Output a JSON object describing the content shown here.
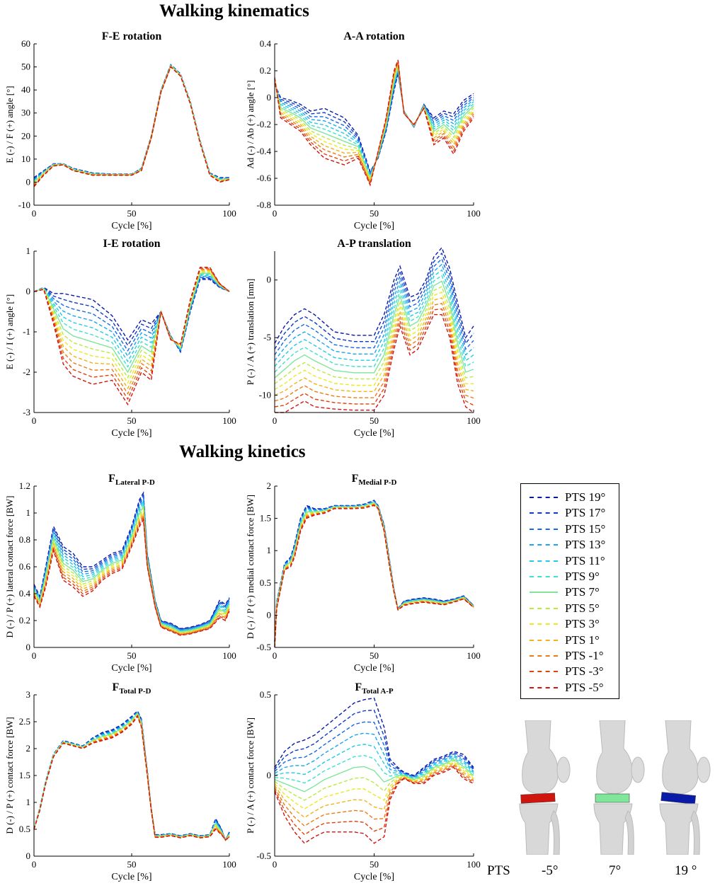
{
  "sections": {
    "kinematics_title": "Walking kinematics",
    "kinetics_title": "Walking kinetics"
  },
  "legend": {
    "entries": [
      {
        "label": "PTS 19°",
        "color": "#0a1aa8"
      },
      {
        "label": "PTS 17°",
        "color": "#0d39cc"
      },
      {
        "label": "PTS 15°",
        "color": "#1668e6"
      },
      {
        "label": "PTS 13°",
        "color": "#1aa6ee"
      },
      {
        "label": "PTS 11°",
        "color": "#22cbe6"
      },
      {
        "label": "PTS 9°",
        "color": "#3fe0cc"
      },
      {
        "label": "PTS 7°",
        "color": "#7fe69a"
      },
      {
        "label": "PTS 5°",
        "color": "#b8ea42"
      },
      {
        "label": "PTS 3°",
        "color": "#eaea22"
      },
      {
        "label": "PTS 1°",
        "color": "#f2b21a"
      },
      {
        "label": "PTS -1°",
        "color": "#ee7a14"
      },
      {
        "label": "PTS -3°",
        "color": "#e2420e"
      },
      {
        "label": "PTS -5°",
        "color": "#d0140e"
      }
    ]
  },
  "illustration": {
    "axis_label": "PTS",
    "models": [
      {
        "label": "-5°",
        "color": "#d0140e"
      },
      {
        "label": "7°",
        "color": "#7fe69a"
      },
      {
        "label": "19 °",
        "color": "#0a1aa8"
      }
    ]
  },
  "chart_data": [
    {
      "id": "fe",
      "type": "line",
      "title": "F-E rotation",
      "title_sub": "",
      "xlabel": "Cycle [%]",
      "ylabel": "E (-) / F (+) angle [°]",
      "xlim": [
        0,
        100
      ],
      "ylim": [
        -10,
        60
      ],
      "xticks": [
        0,
        50,
        100
      ],
      "yticks": [
        -10,
        0,
        10,
        20,
        30,
        40,
        50,
        60
      ],
      "x": [
        0,
        5,
        10,
        15,
        20,
        30,
        40,
        50,
        55,
        60,
        65,
        70,
        75,
        80,
        85,
        90,
        95,
        100
      ],
      "series_top": [
        2,
        5,
        8,
        8,
        6,
        4,
        3.5,
        3.5,
        6,
        20,
        40,
        51,
        47,
        35,
        18,
        4,
        2,
        2
      ],
      "series_bottom": [
        -2,
        3,
        7,
        7.5,
        5,
        3,
        3,
        3,
        5,
        19,
        39,
        50,
        46,
        34,
        17,
        3,
        0,
        1
      ]
    },
    {
      "id": "aa",
      "type": "line",
      "title": "A-A rotation",
      "title_sub": "",
      "xlabel": "Cycle [%]",
      "ylabel": "Ad (-) / Ab (+) angle [°]",
      "xlim": [
        0,
        100
      ],
      "ylim": [
        -0.8,
        0.4
      ],
      "xticks": [
        0,
        50,
        100
      ],
      "yticks": [
        -0.8,
        -0.6,
        -0.4,
        -0.2,
        0,
        0.2,
        0.4
      ],
      "x": [
        0,
        3,
        8,
        13,
        18,
        25,
        35,
        42,
        48,
        52,
        56,
        60,
        62,
        65,
        70,
        75,
        80,
        85,
        90,
        95,
        100
      ],
      "series_top": [
        0.1,
        0,
        -0.02,
        -0.05,
        -0.1,
        -0.08,
        -0.15,
        -0.28,
        -0.55,
        -0.45,
        -0.25,
        0.05,
        0.18,
        -0.1,
        -0.22,
        -0.05,
        -0.15,
        -0.1,
        -0.12,
        -0.02,
        0.03
      ],
      "series_bottom": [
        0.15,
        -0.15,
        -0.2,
        -0.25,
        -0.35,
        -0.45,
        -0.5,
        -0.45,
        -0.65,
        -0.4,
        -0.15,
        0.2,
        0.28,
        -0.12,
        -0.2,
        -0.08,
        -0.35,
        -0.3,
        -0.42,
        -0.25,
        -0.15
      ]
    },
    {
      "id": "ie",
      "type": "line",
      "title": "I-E rotation",
      "title_sub": "",
      "xlabel": "Cycle [%]",
      "ylabel": "E (-) / I (+) angle [°]",
      "xlim": [
        0,
        100
      ],
      "ylim": [
        -3,
        1
      ],
      "xticks": [
        0,
        50,
        100
      ],
      "yticks": [
        -3,
        -2,
        -1,
        0,
        1
      ],
      "x": [
        0,
        5,
        10,
        15,
        20,
        30,
        40,
        48,
        55,
        60,
        65,
        70,
        75,
        80,
        85,
        90,
        95,
        100
      ],
      "series_top": [
        0,
        0.1,
        -0.05,
        -0.05,
        -0.1,
        -0.2,
        -0.6,
        -1.2,
        -0.7,
        -0.8,
        -0.5,
        -1.1,
        -1.5,
        -0.5,
        0.3,
        0.3,
        0.1,
        0
      ],
      "series_bottom": [
        0,
        0.05,
        -0.8,
        -1.8,
        -2.1,
        -2.3,
        -2.2,
        -2.8,
        -2.0,
        -2.2,
        -0.5,
        -1.2,
        -1.3,
        -0.2,
        0.6,
        0.6,
        0.2,
        0
      ]
    },
    {
      "id": "ap",
      "type": "line",
      "title": "A-P translation",
      "title_sub": "",
      "xlabel": "Cycle [%]",
      "ylabel": "P (-) / A (+) translation [mm]",
      "xlim": [
        0,
        100
      ],
      "ylim": [
        -11.5,
        2.5
      ],
      "xticks": [
        0,
        50,
        100
      ],
      "yticks": [
        -10,
        -5,
        0
      ],
      "x": [
        0,
        5,
        10,
        15,
        20,
        30,
        40,
        50,
        55,
        60,
        63,
        68,
        72,
        76,
        80,
        84,
        88,
        92,
        96,
        100
      ],
      "series_top": [
        -5.5,
        -4,
        -3,
        -2.5,
        -3,
        -4.5,
        -4.8,
        -4.8,
        -3,
        0,
        1.2,
        -1.5,
        -1.2,
        0,
        2,
        2.8,
        1,
        -2,
        -5,
        -4
      ],
      "series_bottom": [
        -11.5,
        -11.5,
        -11,
        -10.5,
        -11,
        -11.2,
        -11.3,
        -11.3,
        -10,
        -6,
        -4,
        -6.5,
        -6,
        -4.5,
        -3,
        -3,
        -5,
        -9,
        -11,
        -11.5
      ]
    },
    {
      "id": "flat",
      "type": "line",
      "title": "F",
      "title_sub": "Lateral P-D",
      "xlabel": "Cycle [%]",
      "ylabel": "D (-) / P (+) lateral contact force [BW]",
      "xlim": [
        0,
        100
      ],
      "ylim": [
        0,
        1.2
      ],
      "xticks": [
        0,
        50,
        100
      ],
      "yticks": [
        0,
        0.2,
        0.4,
        0.6,
        0.8,
        1,
        1.2
      ],
      "x": [
        0,
        3,
        6,
        10,
        15,
        20,
        25,
        30,
        35,
        40,
        45,
        50,
        54,
        56,
        58,
        62,
        65,
        70,
        75,
        80,
        85,
        90,
        95,
        98,
        100
      ],
      "series_top": [
        0.47,
        0.38,
        0.6,
        0.9,
        0.75,
        0.7,
        0.6,
        0.6,
        0.65,
        0.7,
        0.72,
        0.9,
        1.1,
        1.15,
        0.7,
        0.35,
        0.2,
        0.18,
        0.14,
        0.15,
        0.17,
        0.2,
        0.35,
        0.32,
        0.37
      ],
      "series_bottom": [
        0.38,
        0.3,
        0.45,
        0.72,
        0.5,
        0.45,
        0.38,
        0.42,
        0.5,
        0.55,
        0.58,
        0.75,
        0.9,
        0.95,
        0.6,
        0.3,
        0.15,
        0.12,
        0.09,
        0.1,
        0.12,
        0.14,
        0.22,
        0.2,
        0.27
      ]
    },
    {
      "id": "fmed",
      "type": "line",
      "title": "F",
      "title_sub": "Medial P-D",
      "xlabel": "Cycle [%]",
      "ylabel": "D (-) / P (+) medial contact force [BW]",
      "xlim": [
        0,
        100
      ],
      "ylim": [
        -0.5,
        2
      ],
      "xticks": [
        0,
        50,
        100
      ],
      "yticks": [
        -0.5,
        0,
        0.5,
        1,
        1.5,
        2
      ],
      "x": [
        0,
        1,
        3,
        5,
        8,
        10,
        13,
        16,
        20,
        25,
        30,
        35,
        40,
        45,
        50,
        52,
        55,
        58,
        60,
        62,
        65,
        70,
        75,
        80,
        85,
        90,
        95,
        100
      ],
      "series_top": [
        -0.4,
        0.2,
        0.5,
        0.8,
        0.9,
        1.1,
        1.5,
        1.7,
        1.65,
        1.65,
        1.7,
        1.7,
        1.7,
        1.72,
        1.78,
        1.7,
        1.4,
        0.8,
        0.4,
        0.1,
        0.22,
        0.25,
        0.27,
        0.25,
        0.22,
        0.25,
        0.3,
        0.15
      ],
      "series_bottom": [
        -0.5,
        0.1,
        0.4,
        0.7,
        0.75,
        0.9,
        1.3,
        1.5,
        1.55,
        1.58,
        1.65,
        1.65,
        1.65,
        1.66,
        1.7,
        1.65,
        1.3,
        0.7,
        0.35,
        0.08,
        0.15,
        0.18,
        0.2,
        0.18,
        0.16,
        0.2,
        0.25,
        0.12
      ]
    },
    {
      "id": "ftot",
      "type": "line",
      "title": "F",
      "title_sub": "Total P-D",
      "xlabel": "Cycle [%]",
      "ylabel": "D (-) / P (+) contact force [BW]",
      "xlim": [
        0,
        100
      ],
      "ylim": [
        0,
        3
      ],
      "xticks": [
        0,
        50,
        100
      ],
      "yticks": [
        0,
        0.5,
        1,
        1.5,
        2,
        2.5,
        3
      ],
      "x": [
        0,
        3,
        6,
        10,
        15,
        20,
        25,
        30,
        35,
        40,
        45,
        50,
        53,
        55,
        58,
        60,
        62,
        65,
        70,
        75,
        80,
        85,
        90,
        93,
        96,
        98,
        100
      ],
      "series_top": [
        0.5,
        0.9,
        1.4,
        1.9,
        2.15,
        2.1,
        2.05,
        2.2,
        2.3,
        2.35,
        2.45,
        2.6,
        2.7,
        2.55,
        1.6,
        0.9,
        0.4,
        0.4,
        0.42,
        0.38,
        0.42,
        0.38,
        0.4,
        0.7,
        0.5,
        0.3,
        0.45
      ],
      "series_bottom": [
        0.5,
        0.85,
        1.35,
        1.85,
        2.1,
        2.05,
        2.0,
        2.1,
        2.15,
        2.2,
        2.3,
        2.45,
        2.6,
        2.4,
        1.5,
        0.85,
        0.35,
        0.35,
        0.38,
        0.34,
        0.38,
        0.34,
        0.36,
        0.5,
        0.4,
        0.3,
        0.35
      ]
    },
    {
      "id": "fap",
      "type": "line",
      "title": "F",
      "title_sub": "Total A-P",
      "xlabel": "Cycle [%]",
      "ylabel": "P (-) / A (+) contact force [BW]",
      "xlim": [
        0,
        100
      ],
      "ylim": [
        -0.5,
        0.5
      ],
      "xticks": [
        0,
        50,
        100
      ],
      "yticks": [
        -0.5,
        0,
        0.5
      ],
      "x": [
        0,
        5,
        10,
        15,
        20,
        25,
        30,
        35,
        40,
        45,
        50,
        55,
        58,
        62,
        65,
        70,
        75,
        80,
        85,
        90,
        95,
        100
      ],
      "series_top": [
        0.05,
        0.15,
        0.2,
        0.22,
        0.25,
        0.3,
        0.35,
        0.4,
        0.45,
        0.47,
        0.48,
        0.3,
        0.1,
        0.05,
        0.02,
        0.0,
        0.05,
        0.1,
        0.12,
        0.15,
        0.13,
        0.05
      ],
      "series_bottom": [
        -0.1,
        -0.25,
        -0.35,
        -0.42,
        -0.38,
        -0.35,
        -0.35,
        -0.35,
        -0.35,
        -0.36,
        -0.42,
        -0.38,
        -0.15,
        -0.05,
        -0.02,
        -0.05,
        -0.05,
        0,
        0.02,
        0.05,
        -0.02,
        -0.05
      ]
    }
  ]
}
